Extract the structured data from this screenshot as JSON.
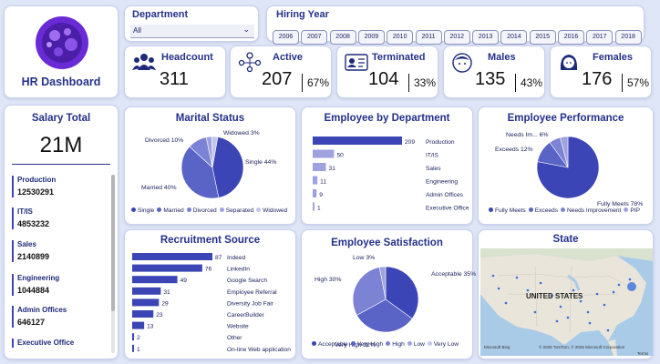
{
  "app": {
    "title": "HR Dashboard"
  },
  "filters": {
    "department_label": "Department",
    "department_value": "All",
    "hiring_year_label": "Hiring Year",
    "years": [
      "2006",
      "2007",
      "2008",
      "2009",
      "2010",
      "2011",
      "2012",
      "2013",
      "2014",
      "2015",
      "2016",
      "2017",
      "2018"
    ]
  },
  "kpis": {
    "headcount": {
      "label": "Headcount",
      "value": "311"
    },
    "active": {
      "label": "Active",
      "value": "207",
      "pct": "67%"
    },
    "terminated": {
      "label": "Terminated",
      "value": "104",
      "pct": "33%"
    },
    "males": {
      "label": "Males",
      "value": "135",
      "pct": "43%"
    },
    "females": {
      "label": "Females",
      "value": "176",
      "pct": "57%"
    }
  },
  "salary": {
    "title": "Salary Total",
    "total": "21M",
    "items": [
      {
        "name": "Production",
        "value": "12530291"
      },
      {
        "name": "IT/IS",
        "value": "4853232"
      },
      {
        "name": "Sales",
        "value": "2140899"
      },
      {
        "name": "Engineering",
        "value": "1044884"
      },
      {
        "name": "Admin Offices",
        "value": "646127"
      },
      {
        "name": "Executive Office",
        "value": ""
      }
    ]
  },
  "colors": {
    "primary": "#3b45b5",
    "c2": "#5a63c6",
    "c3": "#7c83d4",
    "c4": "#9ea3e0",
    "c5": "#c4c7ec"
  },
  "chart_data": [
    {
      "type": "pie",
      "title": "Marital Status",
      "categories": [
        "Single",
        "Married",
        "Divorced",
        "Separated",
        "Widowed"
      ],
      "values": [
        44,
        40,
        10,
        3,
        3
      ],
      "labels": [
        "Single 44%",
        "Married 40%",
        "Divorced 10%",
        "",
        "Widowed 3%"
      ],
      "legend": "bottom"
    },
    {
      "type": "bar",
      "orientation": "horizontal",
      "title": "Employee by Department",
      "categories": [
        "Production",
        "IT/IS",
        "Sales",
        "Engineering",
        "Admin Offices",
        "Executive Office"
      ],
      "values": [
        209,
        50,
        31,
        11,
        9,
        1
      ]
    },
    {
      "type": "pie",
      "title": "Employee Performance",
      "categories": [
        "Fully Meets",
        "Exceeds",
        "Needs Improvement",
        "PIP"
      ],
      "values": [
        78,
        12,
        6,
        4
      ],
      "labels": [
        "Fully Meets 78%",
        "Exceeds 12%",
        "Needs Im... 6%",
        ""
      ],
      "legend": "bottom"
    },
    {
      "type": "bar",
      "orientation": "horizontal",
      "title": "Recruitment Source",
      "categories": [
        "Indeed",
        "LinkedIn",
        "Google Search",
        "Employee Referral",
        "Diversity Job Fair",
        "CareerBuilder",
        "Website",
        "Other",
        "On-line Web application"
      ],
      "values": [
        87,
        76,
        49,
        31,
        29,
        23,
        13,
        2,
        1
      ]
    },
    {
      "type": "pie",
      "title": "Employee Satisfaction",
      "categories": [
        "Acceptable",
        "Very High",
        "High",
        "Low",
        "Very Low"
      ],
      "values": [
        35,
        32,
        30,
        3,
        0
      ],
      "labels": [
        "Acceptable 35%",
        "Very High 32%",
        "High 30%",
        "Low 3%",
        ""
      ],
      "legend": "bottom"
    }
  ],
  "map": {
    "title": "State",
    "country_label": "UNITED STATES",
    "attribution_left": "Microsoft Bing",
    "attribution_right": "© 2025 TomTom, © 2025 Microsoft Corporation",
    "terms": "Terms"
  }
}
